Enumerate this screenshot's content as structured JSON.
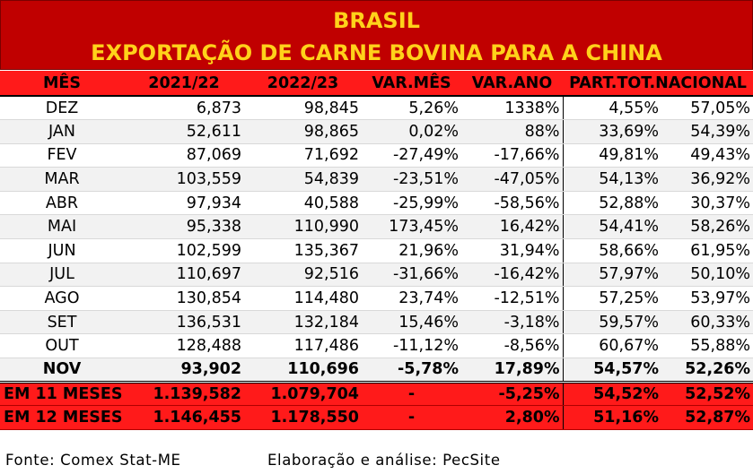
{
  "title": {
    "line1": "BRASIL",
    "line2": "EXPORTAÇÃO DE CARNE BOVINA PARA A CHINA"
  },
  "headers": [
    "MÊS",
    "2021/22",
    "2022/23",
    "VAR.MÊS",
    "VAR.ANO",
    "PART.TOT.NACIONAL"
  ],
  "rows": [
    {
      "mes": "DEZ",
      "y1": "6,873",
      "y2": "98,845",
      "var_mes": "5,26%",
      "var_ano": "1338%",
      "part1": "4,55%",
      "part2": "57,05%"
    },
    {
      "mes": "JAN",
      "y1": "52,611",
      "y2": "98,865",
      "var_mes": "0,02%",
      "var_ano": "88%",
      "part1": "33,69%",
      "part2": "54,39%"
    },
    {
      "mes": "FEV",
      "y1": "87,069",
      "y2": "71,692",
      "var_mes": "-27,49%",
      "var_ano": "-17,66%",
      "part1": "49,81%",
      "part2": "49,43%"
    },
    {
      "mes": "MAR",
      "y1": "103,559",
      "y2": "54,839",
      "var_mes": "-23,51%",
      "var_ano": "-47,05%",
      "part1": "54,13%",
      "part2": "36,92%"
    },
    {
      "mes": "ABR",
      "y1": "97,934",
      "y2": "40,588",
      "var_mes": "-25,99%",
      "var_ano": "-58,56%",
      "part1": "52,88%",
      "part2": "30,37%"
    },
    {
      "mes": "MAI",
      "y1": "95,338",
      "y2": "110,990",
      "var_mes": "173,45%",
      "var_ano": "16,42%",
      "part1": "54,41%",
      "part2": "58,26%"
    },
    {
      "mes": "JUN",
      "y1": "102,599",
      "y2": "135,367",
      "var_mes": "21,96%",
      "var_ano": "31,94%",
      "part1": "58,66%",
      "part2": "61,95%"
    },
    {
      "mes": "JUL",
      "y1": "110,697",
      "y2": "92,516",
      "var_mes": "-31,66%",
      "var_ano": "-16,42%",
      "part1": "57,97%",
      "part2": "50,10%"
    },
    {
      "mes": "AGO",
      "y1": "130,854",
      "y2": "114,480",
      "var_mes": "23,74%",
      "var_ano": "-12,51%",
      "part1": "57,25%",
      "part2": "53,97%"
    },
    {
      "mes": "SET",
      "y1": "136,531",
      "y2": "132,184",
      "var_mes": "15,46%",
      "var_ano": "-3,18%",
      "part1": "59,57%",
      "part2": "60,33%"
    },
    {
      "mes": "OUT",
      "y1": "128,488",
      "y2": "117,486",
      "var_mes": "-11,12%",
      "var_ano": "-8,56%",
      "part1": "60,67%",
      "part2": "55,88%"
    },
    {
      "mes": "NOV",
      "y1": "93,902",
      "y2": "110,696",
      "var_mes": "-5,78%",
      "var_ano": "17,89%",
      "part1": "54,57%",
      "part2": "52,26%"
    }
  ],
  "summary": [
    {
      "label": "EM 11 MESES",
      "y1": "1.139,582",
      "y2": "1.079,704",
      "var_mes": "-",
      "var_ano": "-5,25%",
      "part1": "54,52%",
      "part2": "52,52%"
    },
    {
      "label": "EM 12 MESES",
      "y1": "1.146,455",
      "y2": "1.178,550",
      "var_mes": "-",
      "var_ano": "2,80%",
      "part1": "51,16%",
      "part2": "52,87%"
    }
  ],
  "footer": {
    "source": "Fonte: Comex Stat-ME",
    "elaboration": "Elaboração e análise: PecSite"
  },
  "colors": {
    "title_bg": "#c00000",
    "title_text": "#ffd21a",
    "header_bg": "#ff1a1a",
    "stripe": "#f2f2f2"
  }
}
